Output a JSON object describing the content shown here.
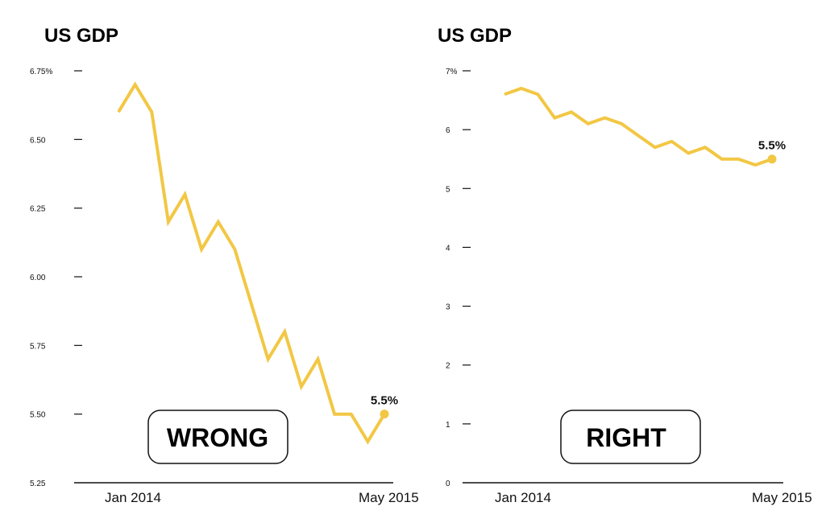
{
  "colors": {
    "line": "#F2C744",
    "axis": "#111111",
    "text": "#111111",
    "background": "#ffffff"
  },
  "chart_data": [
    {
      "type": "line",
      "title": "US GDP",
      "x": [
        "Jan 2014",
        "",
        "",
        "",
        "",
        "",
        "",
        "",
        "",
        "",
        "",
        "",
        "",
        "",
        "",
        "",
        "May 2015"
      ],
      "x_tick_labels": [
        "Jan 2014",
        "May 2015"
      ],
      "series": [
        {
          "values": [
            6.6,
            6.7,
            6.6,
            6.2,
            6.3,
            6.1,
            6.2,
            6.1,
            5.9,
            5.7,
            5.8,
            5.6,
            5.7,
            5.5,
            5.5,
            5.4,
            5.5
          ]
        }
      ],
      "y_ticks": [
        5.25,
        5.5,
        5.75,
        6.0,
        6.25,
        6.5,
        6.75
      ],
      "y_tick_labels": [
        "5.25",
        "5.50",
        "5.75",
        "6.00",
        "6.25",
        "6.50",
        "6.75%"
      ],
      "ylim": [
        5.25,
        6.75
      ],
      "end_label": "5.5%",
      "badge": "WRONG",
      "grid": false
    },
    {
      "type": "line",
      "title": "US GDP",
      "x": [
        "Jan 2014",
        "",
        "",
        "",
        "",
        "",
        "",
        "",
        "",
        "",
        "",
        "",
        "",
        "",
        "",
        "",
        "May 2015"
      ],
      "x_tick_labels": [
        "Jan 2014",
        "May 2015"
      ],
      "series": [
        {
          "values": [
            6.6,
            6.7,
            6.6,
            6.2,
            6.3,
            6.1,
            6.2,
            6.1,
            5.9,
            5.7,
            5.8,
            5.6,
            5.7,
            5.5,
            5.5,
            5.4,
            5.5
          ]
        }
      ],
      "y_ticks": [
        0,
        1,
        2,
        3,
        4,
        5,
        6,
        7
      ],
      "y_tick_labels": [
        "0",
        "1",
        "2",
        "3",
        "4",
        "5",
        "6",
        "7%"
      ],
      "ylim": [
        0,
        7
      ],
      "end_label": "5.5%",
      "badge": "RIGHT",
      "grid": false
    }
  ]
}
